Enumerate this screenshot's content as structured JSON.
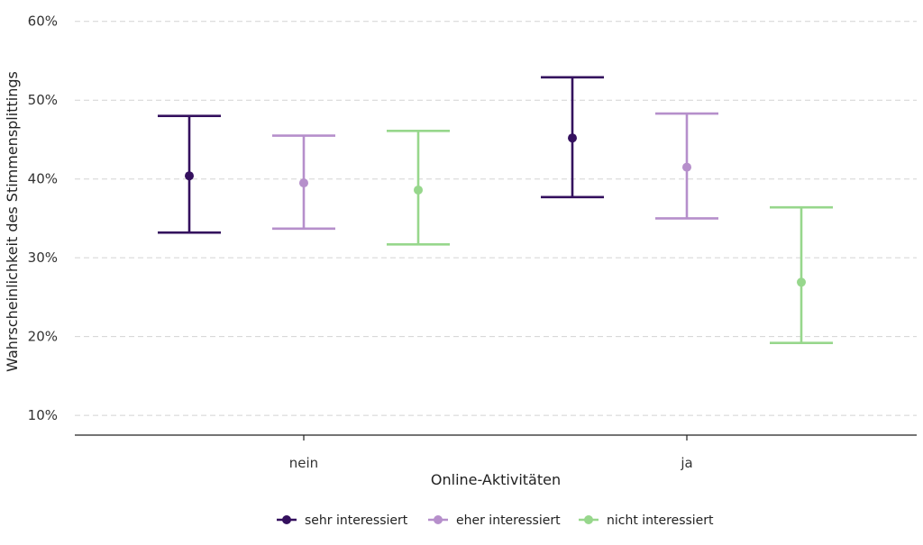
{
  "chart_data": {
    "type": "errorbar",
    "xlabel": "Online-Aktivitäten",
    "ylabel": "Wahrscheinlichkeit des Stimmensplittings",
    "categories": [
      "nein",
      "ja"
    ],
    "ylim": [
      0.075,
      0.61
    ],
    "yticks": [
      0.1,
      0.2,
      0.3,
      0.4,
      0.5,
      0.6
    ],
    "ytick_labels": [
      "10%",
      "20%",
      "30%",
      "40%",
      "50%",
      "60%"
    ],
    "grid": "horizontal-dashed",
    "legend_position": "bottom",
    "series": [
      {
        "name": "sehr interessiert",
        "color": "#34105e",
        "points": [
          {
            "category": "nein",
            "value": 0.404,
            "lower": 0.332,
            "upper": 0.48
          },
          {
            "category": "ja",
            "value": 0.452,
            "lower": 0.377,
            "upper": 0.529
          }
        ]
      },
      {
        "name": "eher interessiert",
        "color": "#b68fcb",
        "points": [
          {
            "category": "nein",
            "value": 0.395,
            "lower": 0.337,
            "upper": 0.455
          },
          {
            "category": "ja",
            "value": 0.415,
            "lower": 0.35,
            "upper": 0.483
          }
        ]
      },
      {
        "name": "nicht interessiert",
        "color": "#97d78c",
        "points": [
          {
            "category": "nein",
            "value": 0.386,
            "lower": 0.317,
            "upper": 0.461
          },
          {
            "category": "ja",
            "value": 0.269,
            "lower": 0.192,
            "upper": 0.364
          }
        ]
      }
    ]
  }
}
